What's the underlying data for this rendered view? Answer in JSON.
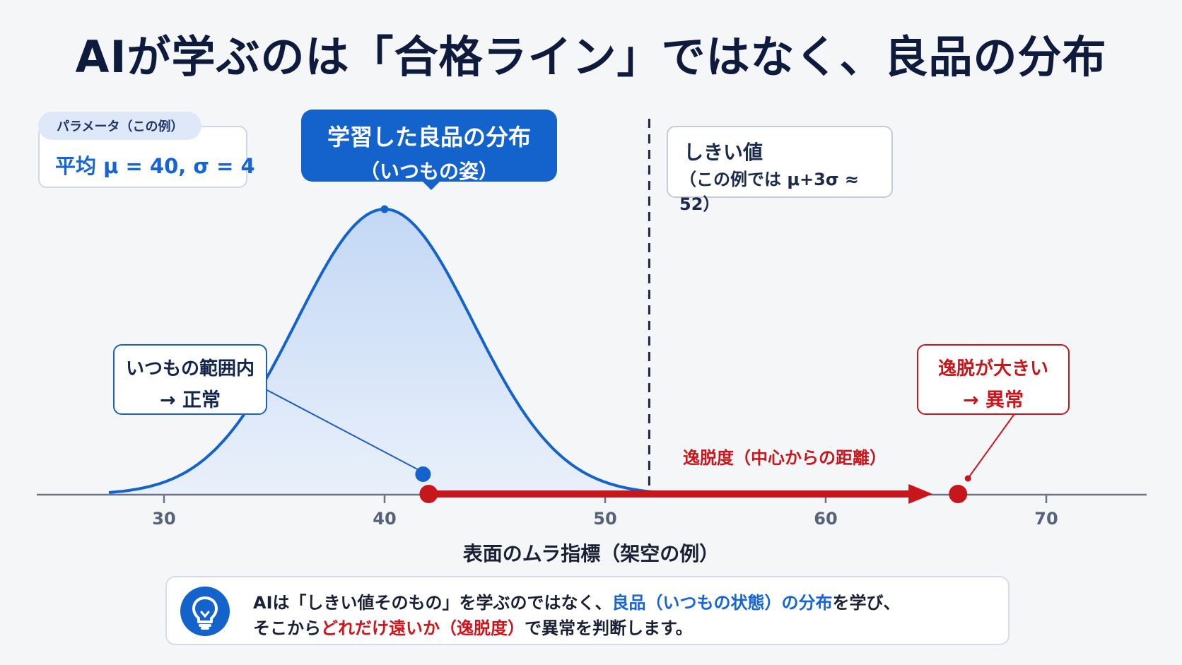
{
  "title": "AIが学ぶのは「合格ライン」ではなく、良品の分布",
  "param": {
    "tag": "パラメータ（この例）",
    "value": "平均 μ = 40, σ = 4",
    "mean": 40,
    "sd": 4
  },
  "distribution_label": {
    "line1": "学習した良品の分布",
    "line2": "（いつもの姿）"
  },
  "threshold": {
    "line1": "しきい値",
    "line2": "（この例では μ+3σ ≈ 52）",
    "value": 52
  },
  "normal_label": {
    "line1": "いつもの範囲内",
    "line2": "→ 正常"
  },
  "anomaly_label": {
    "line1": "逸脱が大きい",
    "line2": "→ 異常"
  },
  "deviation_label": "逸脱度（中心からの距離）",
  "chart_data": {
    "type": "area",
    "x_range": [
      25,
      75
    ],
    "x_ticks": [
      30,
      40,
      50,
      60,
      70
    ],
    "x_tick_labels": [
      "30",
      "40",
      "50",
      "60",
      "70"
    ],
    "xlabel": "表面のムラ指標（架空の例）",
    "curve": "normal",
    "mean": 40,
    "sd": 4,
    "threshold_x": 52,
    "normal_point_x": 42,
    "anomaly_point_x": 66,
    "arrow_from_x": 42,
    "arrow_to_x": 66
  },
  "note": {
    "line1_a": "AIは「しきい値そのもの」を学ぶのではなく、",
    "line1_b": "良品（いつもの状態）の分布",
    "line1_c": "を学び、",
    "line2_a": "そこから",
    "line2_b": "どれだけ遠いか（逸脱度）",
    "line2_c": "で異常を判断します。"
  },
  "colors": {
    "navy": "#0e1b3d",
    "blue": "#1463cc",
    "red": "#c8161d"
  }
}
